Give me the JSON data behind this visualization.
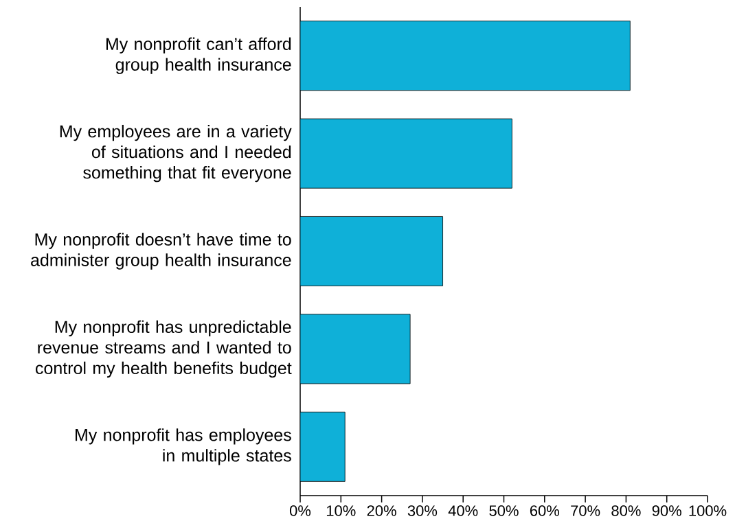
{
  "chart_data": {
    "type": "bar",
    "orientation": "horizontal",
    "categories": [
      "My nonprofit can’t afford group health insurance",
      "My employees are in a variety of situations and I needed something that fit everyone",
      "My nonprofit doesn’t have time to administer group health insurance",
      "My nonprofit has unpredictable revenue streams and I wanted to control my health benefits budget",
      "My nonprofit has employees in multiple states"
    ],
    "values": [
      81,
      52,
      35,
      27,
      11
    ],
    "color": "#0fb0d8",
    "xlim": [
      0,
      100
    ],
    "xticks": [
      {
        "value": 0,
        "label": "0%"
      },
      {
        "value": 10,
        "label": "10%"
      },
      {
        "value": 20,
        "label": "20%"
      },
      {
        "value": 30,
        "label": "30%"
      },
      {
        "value": 40,
        "label": "40%"
      },
      {
        "value": 50,
        "label": "50%"
      },
      {
        "value": 60,
        "label": "60%"
      },
      {
        "value": 70,
        "label": "70%"
      },
      {
        "value": 80,
        "label": "80%"
      },
      {
        "value": 90,
        "label": "90%"
      },
      {
        "value": 100,
        "label": "100%"
      }
    ],
    "grid": false
  }
}
